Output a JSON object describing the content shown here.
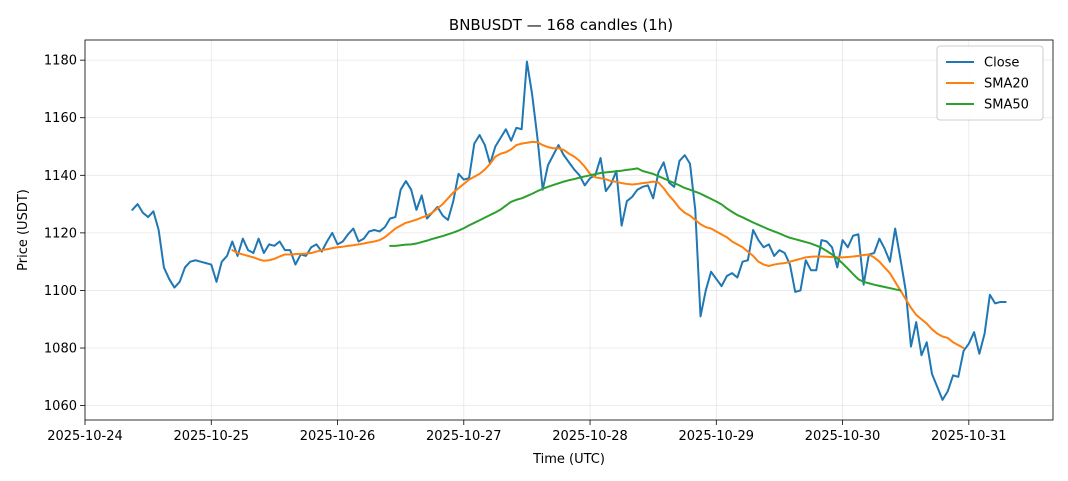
{
  "chart_data": {
    "type": "line",
    "title": "BNBUSDT — 168 candles (1h)",
    "xlabel": "Time (UTC)",
    "ylabel": "Price (USDT)",
    "x_start": "2025-10-24T09:00:00Z",
    "x_step_hours": 1,
    "xlim": [
      "2025-10-24T00:00:00Z",
      "2025-10-31T16:00:00Z"
    ],
    "ylim": [
      1055,
      1187
    ],
    "x_ticks": [
      "2025-10-24",
      "2025-10-25",
      "2025-10-26",
      "2025-10-27",
      "2025-10-28",
      "2025-10-29",
      "2025-10-30",
      "2025-10-31"
    ],
    "y_ticks": [
      1060,
      1080,
      1100,
      1120,
      1140,
      1160,
      1180
    ],
    "grid": true,
    "legend_position": "top-right",
    "series": [
      {
        "name": "Close",
        "color": "#1f77b4",
        "values": [
          1128,
          1130,
          1127,
          1125.5,
          1127.5,
          1121,
          1108,
          1104,
          1101,
          1103,
          1108,
          1110,
          1110.5,
          1110,
          1109.5,
          1109,
          1103,
          1110,
          1112,
          1117,
          1112,
          1118,
          1114,
          1113,
          1118,
          1113,
          1116,
          1115.5,
          1117,
          1114,
          1114,
          1109,
          1112.5,
          1112,
          1115,
          1116,
          1113.5,
          1117,
          1120,
          1116,
          1117,
          1119.5,
          1121.5,
          1117,
          1118,
          1120.5,
          1121,
          1120.5,
          1122,
          1125,
          1125.5,
          1135,
          1138,
          1135,
          1128,
          1133,
          1125,
          1127,
          1129,
          1126,
          1124.5,
          1131,
          1140.5,
          1138.5,
          1139,
          1151,
          1154,
          1150.5,
          1144,
          1150,
          1153,
          1156,
          1152,
          1156.5,
          1156,
          1179.5,
          1168,
          1153,
          1135,
          1143.5,
          1147,
          1150.5,
          1147,
          1144.5,
          1142,
          1140,
          1136.5,
          1139,
          1140,
          1146,
          1134.5,
          1137,
          1141.5,
          1122.5,
          1131,
          1132.5,
          1135,
          1136,
          1136.5,
          1132,
          1141,
          1144.5,
          1137.5,
          1136,
          1145,
          1147,
          1144,
          1128,
          1091,
          1100,
          1106.5,
          1104,
          1101.5,
          1105,
          1106,
          1104.5,
          1110,
          1110.5,
          1121,
          1117.5,
          1115,
          1116,
          1112,
          1114,
          1113,
          1109,
          1099.5,
          1100,
          1110.5,
          1107,
          1107,
          1117.5,
          1117,
          1115,
          1108,
          1117.5,
          1115,
          1119,
          1119.5,
          1102,
          1112.5,
          1113,
          1118,
          1114.5,
          1110,
          1121.5,
          1111,
          1100,
          1080.5,
          1089,
          1077.5,
          1082,
          1071,
          1066.5,
          1062,
          1065,
          1070.5,
          1070,
          1079,
          1081.5,
          1085.5,
          1078,
          1085,
          1098.5,
          1095.5,
          1096,
          1096
        ]
      },
      {
        "name": "SMA20",
        "color": "#ff7f0e",
        "values": [
          null,
          null,
          null,
          null,
          null,
          null,
          null,
          null,
          null,
          null,
          null,
          null,
          null,
          null,
          null,
          null,
          null,
          null,
          null,
          1114,
          1113,
          1112.5,
          1112,
          1111.5,
          1110.8,
          1110.3,
          1110.5,
          1111,
          1111.8,
          1112.5,
          1112.5,
          1112.6,
          1112.7,
          1112.8,
          1113,
          1113.5,
          1114,
          1114.3,
          1114.7,
          1115,
          1115.2,
          1115.5,
          1115.7,
          1116,
          1116.3,
          1116.7,
          1117,
          1117.5,
          1118.5,
          1120,
          1121.5,
          1122.5,
          1123.5,
          1124,
          1124.6,
          1125.3,
          1126,
          1127,
          1128.5,
          1130,
          1132,
          1134,
          1135.5,
          1137,
          1138.5,
          1139.5,
          1140.5,
          1142,
          1144,
          1146.5,
          1147.5,
          1148,
          1149,
          1150.5,
          1151,
          1151.3,
          1151.6,
          1151.5,
          1150.5,
          1149.8,
          1149.4,
          1149.4,
          1148.8,
          1147.5,
          1146.5,
          1145,
          1143,
          1140.5,
          1139.3,
          1139,
          1138.6,
          1138,
          1137.7,
          1137.3,
          1137,
          1136.8,
          1137,
          1137.3,
          1137.5,
          1137.8,
          1137.5,
          1135.5,
          1133,
          1131,
          1128.6,
          1127,
          1126,
          1124.5,
          1123,
          1122,
          1121.5,
          1120.5,
          1119.5,
          1118.5,
          1117,
          1116,
          1115,
          1113.5,
          1112,
          1110,
          1109,
          1108.5,
          1109,
          1109.3,
          1109.5,
          1110,
          1110.5,
          1111,
          1111.5,
          1111.7,
          1111.8,
          1111.8,
          1111.7,
          1111.6,
          1111.5,
          1111.5,
          1111.6,
          1111.8,
          1112,
          1112.3,
          1112.5,
          1111.5,
          1110,
          1108,
          1106,
          1103,
          1100,
          1097,
          1094,
          1091.5,
          1090,
          1088.5,
          1086.5,
          1085,
          1084,
          1083.5,
          1082,
          1081,
          1080
        ]
      },
      {
        "name": "SMA50",
        "color": "#2ca02c",
        "values": [
          null,
          null,
          null,
          null,
          null,
          null,
          null,
          null,
          null,
          null,
          null,
          null,
          null,
          null,
          null,
          null,
          null,
          null,
          null,
          null,
          null,
          null,
          null,
          null,
          null,
          null,
          null,
          null,
          null,
          null,
          null,
          null,
          null,
          null,
          null,
          null,
          null,
          null,
          null,
          null,
          null,
          null,
          null,
          null,
          null,
          null,
          null,
          null,
          null,
          1115.5,
          1115.5,
          1115.7,
          1115.9,
          1116,
          1116.3,
          1116.8,
          1117.3,
          1117.9,
          1118.4,
          1118.9,
          1119.5,
          1120.1,
          1120.8,
          1121.6,
          1122.6,
          1123.5,
          1124.4,
          1125.3,
          1126.2,
          1127.1,
          1128.1,
          1129.5,
          1130.8,
          1131.5,
          1132,
          1132.8,
          1133.6,
          1134.5,
          1135.3,
          1136,
          1136.6,
          1137.2,
          1137.8,
          1138.3,
          1138.7,
          1139.2,
          1139.6,
          1140,
          1140.4,
          1140.8,
          1141,
          1141.2,
          1141.4,
          1141.6,
          1141.9,
          1142.1,
          1142.4,
          1141.5,
          1141,
          1140.5,
          1139.7,
          1138.9,
          1138.1,
          1137.3,
          1136.5,
          1135.6,
          1135,
          1134.3,
          1133.6,
          1132.7,
          1131.8,
          1130.9,
          1129.9,
          1128.5,
          1127.3,
          1126.2,
          1125.4,
          1124.5,
          1123.6,
          1122.8,
          1122,
          1121.2,
          1120.5,
          1119.8,
          1119,
          1118.3,
          1117.8,
          1117.3,
          1116.8,
          1116.3,
          1115.6,
          1114.8,
          1113.7,
          1112.5,
          1111.1,
          1109.4,
          1107.6,
          1105.7,
          1103.9,
          1103,
          1102.5,
          1102,
          1101.6,
          1101.2,
          1100.8,
          1100.4,
          1100
        ]
      }
    ]
  }
}
